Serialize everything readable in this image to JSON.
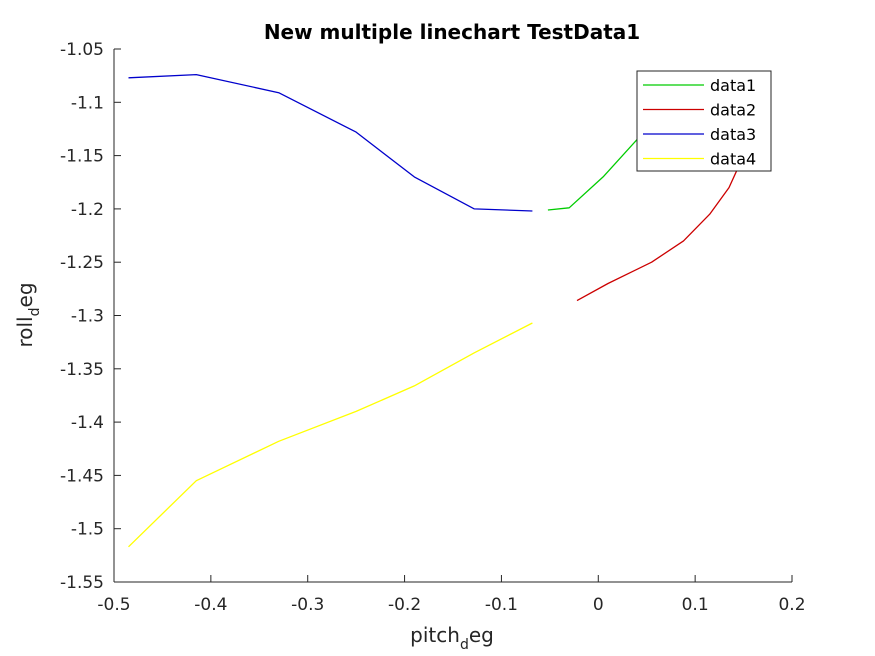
{
  "chart_data": {
    "type": "line",
    "title": "New multiple linechart TestData1",
    "xlabel": {
      "main": "pitch",
      "sub": "d",
      "tail": "eg"
    },
    "ylabel": {
      "main": "roll",
      "sub": "d",
      "tail": "eg"
    },
    "xlim": [
      -0.5,
      0.2
    ],
    "ylim": [
      -1.55,
      -1.05
    ],
    "xticks": [
      -0.5,
      -0.4,
      -0.3,
      -0.2,
      -0.1,
      0,
      0.1,
      0.2
    ],
    "xtick_labels": [
      "-0.5",
      "-0.4",
      "-0.3",
      "-0.2",
      "-0.1",
      "0",
      "0.1",
      "0.2"
    ],
    "yticks": [
      -1.55,
      -1.5,
      -1.45,
      -1.4,
      -1.35,
      -1.3,
      -1.25,
      -1.2,
      -1.15,
      -1.1,
      -1.05
    ],
    "ytick_labels": [
      "-1.55",
      "-1.5",
      "-1.45",
      "-1.4",
      "-1.35",
      "-1.3",
      "-1.25",
      "-1.2",
      "-1.15",
      "-1.1",
      "-1.05"
    ],
    "grid": false,
    "legend_position": "top-right",
    "series": [
      {
        "name": "data1",
        "color": "#00cc00",
        "x": [
          -0.052,
          -0.03,
          0.005,
          0.04
        ],
        "y": [
          -1.201,
          -1.199,
          -1.17,
          -1.135
        ]
      },
      {
        "name": "data2",
        "color": "#cc0000",
        "x": [
          -0.022,
          0.01,
          0.055,
          0.088,
          0.115,
          0.135,
          0.145
        ],
        "y": [
          -1.286,
          -1.27,
          -1.25,
          -1.23,
          -1.205,
          -1.18,
          -1.16
        ]
      },
      {
        "name": "data3",
        "color": "#0000cc",
        "x": [
          -0.485,
          -0.415,
          -0.33,
          -0.25,
          -0.19,
          -0.128,
          -0.068
        ],
        "y": [
          -1.077,
          -1.074,
          -1.091,
          -1.128,
          -1.17,
          -1.2,
          -1.202
        ]
      },
      {
        "name": "data4",
        "color": "#ffff00",
        "x": [
          -0.485,
          -0.415,
          -0.33,
          -0.25,
          -0.19,
          -0.128,
          -0.068
        ],
        "y": [
          -1.517,
          -1.455,
          -1.418,
          -1.39,
          -1.366,
          -1.335,
          -1.307
        ]
      }
    ]
  }
}
